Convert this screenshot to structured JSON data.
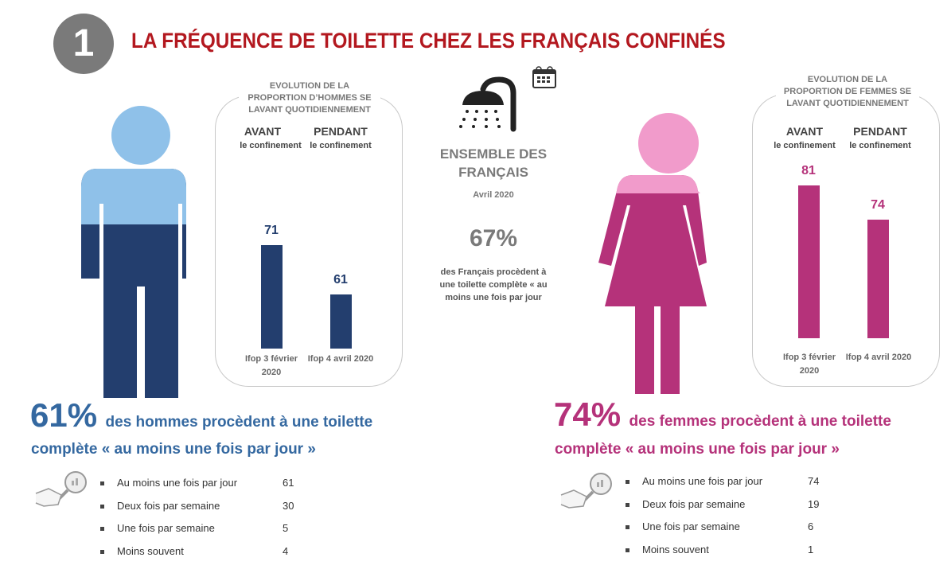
{
  "header": {
    "number": "1",
    "title": "LA FRÉQUENCE DE TOILETTE CHEZ LES FRANÇAIS CONFINÉS"
  },
  "colors": {
    "title": "#b3181f",
    "men_light": "#8fc1e9",
    "men_dark": "#233e6e",
    "men_text": "#3468a0",
    "women_light": "#f19bcb",
    "women_dark": "#b5327a"
  },
  "center": {
    "title": "ENSEMBLE DES FRANÇAIS",
    "date": "Avril 2020",
    "percent": "67%",
    "text": "des Français procèdent à une toilette complète « au moins une fois par jour",
    "icons": [
      "shower-icon",
      "calendar-icon"
    ]
  },
  "men": {
    "box_title": "EVOLUTION DE LA PROPORTION D’HOMMES SE LAVANT QUOTIDIENNEMENT",
    "avant": "AVANT",
    "pendant": "PENDANT",
    "sub": "le confinement",
    "percent": "61%",
    "text1": "des hommes procèdent à une toilette",
    "text2": "complète « au moins une fois par jour »",
    "list": [
      {
        "label": "Au moins une fois par jour",
        "value": "61"
      },
      {
        "label": "Deux fois par semaine",
        "value": "30"
      },
      {
        "label": "Une fois par semaine",
        "value": "5"
      },
      {
        "label": "Moins souvent",
        "value": "4"
      }
    ]
  },
  "women": {
    "box_title": "EVOLUTION DE LA PROPORTION DE FEMMES SE LAVANT QUOTIDIENNEMENT",
    "avant": "AVANT",
    "pendant": "PENDANT",
    "sub": "le confinement",
    "percent": "74%",
    "text1": "des femmes procèdent à une toilette",
    "text2": "complète « au moins une fois par jour »",
    "list": [
      {
        "label": "Au moins une fois par jour",
        "value": "74"
      },
      {
        "label": "Deux fois par semaine",
        "value": "19"
      },
      {
        "label": "Une fois par semaine",
        "value": "6"
      },
      {
        "label": "Moins souvent",
        "value": "1"
      }
    ]
  },
  "chart_data": [
    {
      "type": "bar",
      "title": "EVOLUTION DE LA PROPORTION D’HOMMES SE LAVANT QUOTIDIENNEMENT",
      "categories": [
        "Ifop 3 février 2020",
        "Ifop 4 avril 2020"
      ],
      "values": [
        71,
        61
      ],
      "color": "#233e6e",
      "grid": false
    },
    {
      "type": "bar",
      "title": "EVOLUTION DE LA PROPORTION DE FEMMES SE LAVANT QUOTIDIENNEMENT",
      "categories": [
        "Ifop 3 février 2020",
        "Ifop 4 avril 2020"
      ],
      "values": [
        81,
        74
      ],
      "color": "#b5327a",
      "grid": false
    }
  ]
}
